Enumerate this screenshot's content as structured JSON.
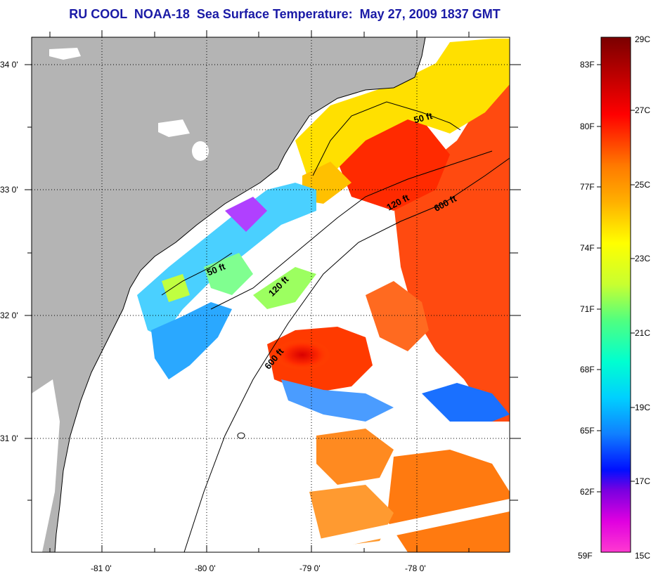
{
  "title": "RU COOL  NOAA-18  Sea Surface Temperature:  May 27, 2009 1837 GMT",
  "map": {
    "lat_labels": [
      "34 0'",
      "33 0'",
      "32 0'",
      "31 0'"
    ],
    "lon_labels": [
      "-81 0'",
      "-80 0'",
      "-79 0'",
      "-78 0'"
    ],
    "contours": [
      "50 ft",
      "120 ft",
      "600 ft",
      "50 ft",
      "120 ft",
      "600 ft"
    ],
    "colors": {
      "land": "#b4b4b4",
      "cloud": "#ffffff",
      "warm": "#ff3a10",
      "cool": "#29a8ff"
    }
  },
  "colorbar": {
    "f_labels": [
      "83F",
      "80F",
      "77F",
      "74F",
      "71F",
      "68F",
      "65F",
      "62F",
      "59F"
    ],
    "c_labels": [
      "29C",
      "27C",
      "25C",
      "23C",
      "21C",
      "19C",
      "17C",
      "15C"
    ]
  }
}
